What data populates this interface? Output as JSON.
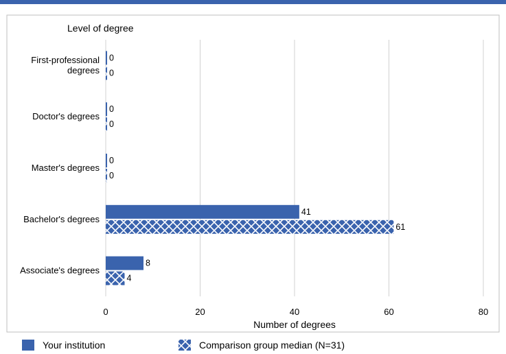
{
  "colors": {
    "top_bar": "#3a63ad",
    "series_primary": "#3a63ad",
    "hatch_line": "#ffffff",
    "grid": "#d0d0d0",
    "frame": "#bfbfbf"
  },
  "chart_data": {
    "type": "bar",
    "orientation": "horizontal",
    "y_axis_title": "Level of degree",
    "x_axis_title": "Number of degrees",
    "categories": [
      [
        "First-professional",
        "degrees"
      ],
      [
        "Doctor's degrees"
      ],
      [
        "Master's degrees"
      ],
      [
        "Bachelor's degrees"
      ],
      [
        "Associate's degrees"
      ]
    ],
    "series": [
      {
        "name": "Your institution",
        "values": [
          0,
          0,
          0,
          41,
          8
        ],
        "pattern": "solid"
      },
      {
        "name": "Comparison group median (N=31)",
        "values": [
          0,
          0,
          0,
          61,
          4
        ],
        "pattern": "crosshatch"
      }
    ],
    "x_ticks": [
      0,
      20,
      40,
      60,
      80
    ],
    "xlim": [
      0,
      80
    ],
    "grid": true,
    "legend_position": "bottom"
  }
}
